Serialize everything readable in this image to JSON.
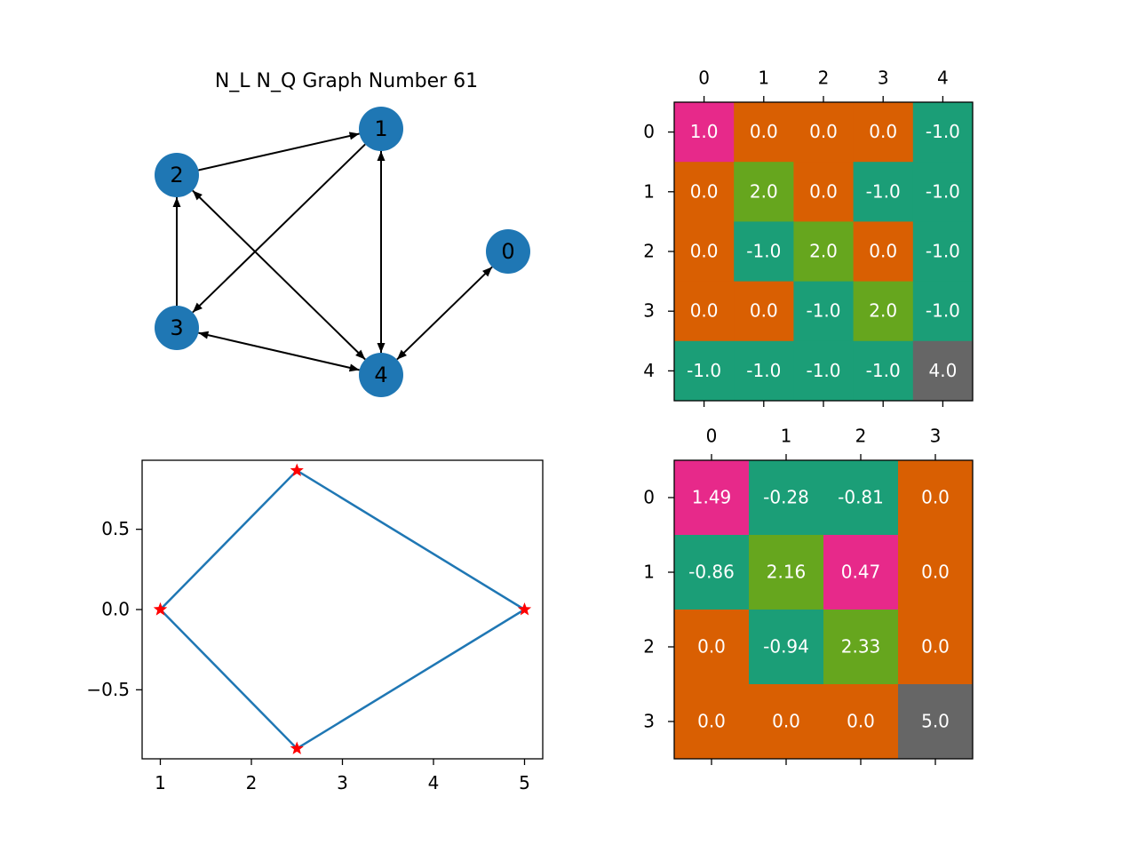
{
  "colors": {
    "node": "#1f77b4",
    "edge": "#000000",
    "line": "#1f77b4",
    "marker": "#ff0000",
    "cell_text": "#ffffff",
    "cell_1": "#e7298a",
    "cell_2": "#66a61e",
    "cell_0": "#d95f02",
    "cell_neg": "#1b9e77",
    "cell_max": "#666666"
  },
  "chart_data": [
    {
      "type": "graph",
      "title": "N_L  N_Q Graph Number 61",
      "nodes": [
        {
          "id": "0",
          "label": "0"
        },
        {
          "id": "1",
          "label": "1"
        },
        {
          "id": "2",
          "label": "2"
        },
        {
          "id": "3",
          "label": "3"
        },
        {
          "id": "4",
          "label": "4"
        }
      ],
      "edges": [
        {
          "from": "2",
          "to": "1",
          "bidirectional": false
        },
        {
          "from": "1",
          "to": "3",
          "bidirectional": false
        },
        {
          "from": "3",
          "to": "2",
          "bidirectional": false
        },
        {
          "from": "1",
          "to": "4",
          "bidirectional": true
        },
        {
          "from": "2",
          "to": "4",
          "bidirectional": true
        },
        {
          "from": "3",
          "to": "4",
          "bidirectional": true
        },
        {
          "from": "0",
          "to": "4",
          "bidirectional": true
        }
      ]
    },
    {
      "type": "heatmap",
      "x_ticks": [
        "0",
        "1",
        "2",
        "3",
        "4"
      ],
      "y_ticks": [
        "0",
        "1",
        "2",
        "3",
        "4"
      ],
      "x_tick_position": "top",
      "cells": [
        [
          "1.0",
          "0.0",
          "0.0",
          "0.0",
          "-1.0"
        ],
        [
          "0.0",
          "2.0",
          "0.0",
          "-1.0",
          "-1.0"
        ],
        [
          "0.0",
          "-1.0",
          "2.0",
          "0.0",
          "-1.0"
        ],
        [
          "0.0",
          "0.0",
          "-1.0",
          "2.0",
          "-1.0"
        ],
        [
          "-1.0",
          "-1.0",
          "-1.0",
          "-1.0",
          "4.0"
        ]
      ]
    },
    {
      "type": "line",
      "x": [
        1,
        2.5,
        5,
        2.5,
        1
      ],
      "y": [
        0,
        0.866,
        0,
        -0.866,
        0
      ],
      "marker": "star",
      "xlim": [
        0.8,
        5.2
      ],
      "ylim": [
        -0.93,
        0.93
      ],
      "x_ticks": [
        "1",
        "2",
        "3",
        "4",
        "5"
      ],
      "x_tick_values": [
        1,
        2,
        3,
        4,
        5
      ],
      "y_ticks": [
        "0.5",
        "0.0",
        "−0.5"
      ],
      "y_tick_values": [
        0.5,
        0,
        -0.5
      ]
    },
    {
      "type": "heatmap",
      "x_ticks": [
        "0",
        "1",
        "2",
        "3"
      ],
      "y_ticks": [
        "0",
        "1",
        "2",
        "3"
      ],
      "x_tick_position": "top",
      "cells": [
        [
          "1.49",
          "-0.28",
          "-0.81",
          "0.0"
        ],
        [
          "-0.86",
          "2.16",
          "0.47",
          "0.0"
        ],
        [
          "0.0",
          "-0.94",
          "2.33",
          "0.0"
        ],
        [
          "0.0",
          "0.0",
          "0.0",
          "5.0"
        ]
      ]
    }
  ]
}
